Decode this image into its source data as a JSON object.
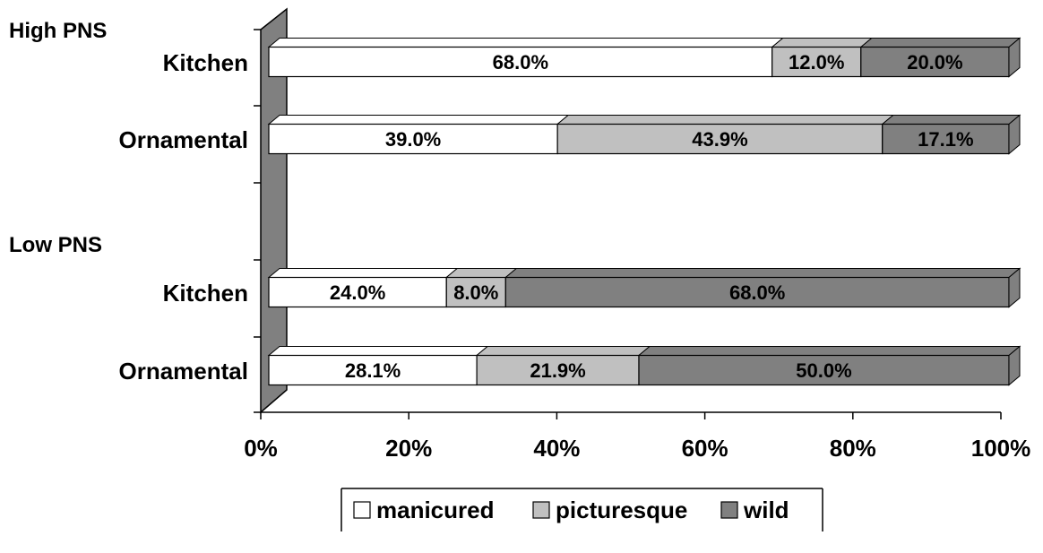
{
  "chart_data": {
    "type": "bar",
    "orientation": "horizontal",
    "stacked": true,
    "percent_stacked": true,
    "groups": [
      {
        "name": "High PNS",
        "categories": [
          "Kitchen",
          "Ornamental"
        ]
      },
      {
        "name": "Low PNS",
        "categories": [
          "Kitchen",
          "Ornamental"
        ]
      }
    ],
    "rows": [
      {
        "group": "High PNS",
        "category": "Kitchen",
        "values": [
          68.0,
          12.0,
          20.0
        ],
        "labels": [
          "68.0%",
          "12.0%",
          "20.0%"
        ]
      },
      {
        "group": "High PNS",
        "category": "Ornamental",
        "values": [
          39.0,
          43.9,
          17.1
        ],
        "labels": [
          "39.0%",
          "43.9%",
          "17.1%"
        ]
      },
      {
        "group": "Low PNS",
        "category": "Kitchen",
        "values": [
          24.0,
          8.0,
          68.0
        ],
        "labels": [
          "24.0%",
          "8.0%",
          "68.0%"
        ]
      },
      {
        "group": "Low PNS",
        "category": "Ornamental",
        "values": [
          28.1,
          21.9,
          50.0
        ],
        "labels": [
          "28.1%",
          "21.9%",
          "50.0%"
        ]
      }
    ],
    "series": [
      {
        "name": "manicured",
        "color": "#ffffff"
      },
      {
        "name": "picturesque",
        "color": "#c0c0c0"
      },
      {
        "name": "wild",
        "color": "#808080"
      }
    ],
    "x_ticks": [
      "0%",
      "20%",
      "40%",
      "60%",
      "80%",
      "100%"
    ],
    "xlim": [
      0,
      100
    ],
    "legend_position": "bottom",
    "three_d": true
  }
}
